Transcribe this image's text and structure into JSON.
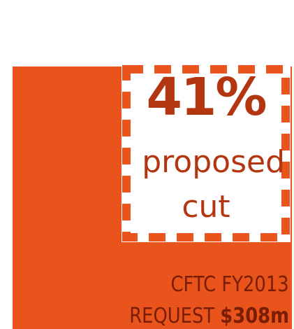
{
  "callout": {
    "percent": "41%",
    "line1": "proposed",
    "line2": "cut"
  },
  "request": {
    "line1": "CFTC FY2013",
    "line2_prefix": "REQUEST ",
    "amount": "$308m"
  },
  "colors": {
    "block": "#e8541c",
    "callout_text": "#b33611",
    "request_text": "#7a1d05",
    "background": "#ffffff"
  }
}
